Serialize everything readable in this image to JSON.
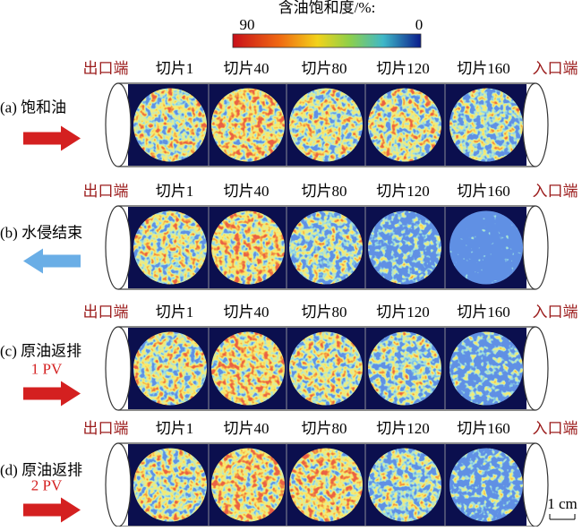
{
  "colorbar": {
    "title": "含油饱和度/%:",
    "ticks": [
      90,
      0
    ]
  },
  "rows": [
    {
      "label": "(a) 饱和油",
      "outlet": "出口端",
      "inlet": "入口端",
      "slices": [
        "切片1",
        "切片40",
        "切片80",
        "切片120",
        "切片160"
      ]
    },
    {
      "label": "(b) 水侵结束",
      "outlet": "出口端",
      "inlet": "入口端",
      "slices": [
        "切片1",
        "切片40",
        "切片80",
        "切片120",
        "切片160"
      ]
    },
    {
      "label": "(c) 原油返排",
      "pv": "1 PV",
      "outlet": "出口端",
      "inlet": "入口端",
      "slices": [
        "切片1",
        "切片40",
        "切片80",
        "切片120",
        "切片160"
      ]
    },
    {
      "label": "(d) 原油返排",
      "pv": "2 PV",
      "outlet": "出口端",
      "inlet": "入口端",
      "slices": [
        "切片1",
        "切片40",
        "切片80",
        "切片120",
        "切片160"
      ]
    }
  ],
  "scale_bar": "1 cm"
}
